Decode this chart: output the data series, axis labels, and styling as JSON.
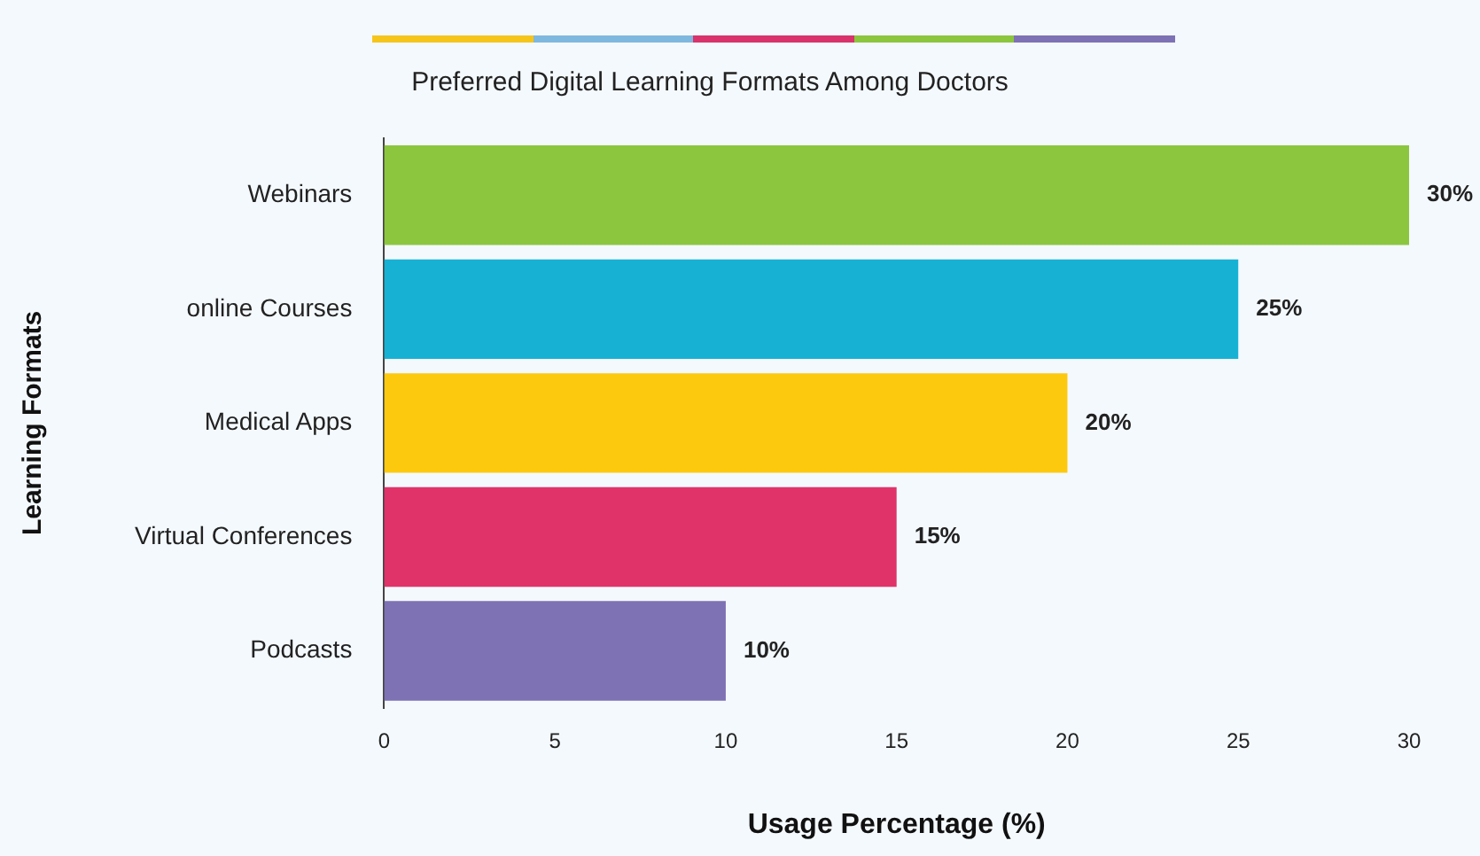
{
  "chart_data": {
    "type": "bar",
    "orientation": "horizontal",
    "title": "Preferred Digital Learning Formats Among Doctors",
    "xlabel": "Usage Percentage (%)",
    "ylabel": "Learning Formats",
    "categories": [
      "Webinars",
      "online Courses",
      "Medical Apps",
      "Virtual Conferences",
      "Podcasts"
    ],
    "values": [
      30,
      25,
      20,
      15,
      10
    ],
    "value_labels": [
      "30%",
      "25%",
      "20%",
      "15%",
      "10%"
    ],
    "colors": [
      "#8cc63f",
      "#17b2d3",
      "#fdc90f",
      "#e0336a",
      "#7e72b4"
    ],
    "xlim": [
      0,
      30
    ],
    "xticks": [
      0,
      5,
      10,
      15,
      20,
      25,
      30
    ],
    "grid": false,
    "legend": false
  }
}
